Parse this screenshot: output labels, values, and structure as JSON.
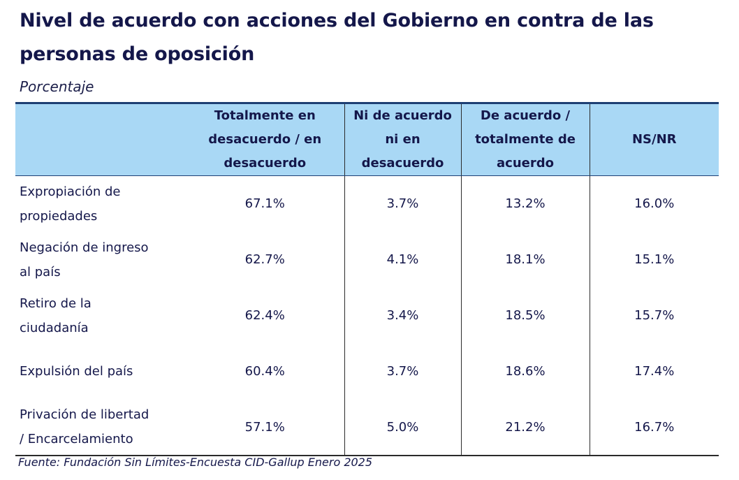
{
  "chart_data": {
    "type": "table",
    "title_line1": "Nivel de acuerdo con acciones del Gobierno en contra de las",
    "title_line2": "personas de oposición",
    "subtitle": "Porcentaje",
    "columns": [
      "",
      "Totalmente en desacuerdo / en desacuerdo",
      "Ni de acuerdo ni en desacuerdo",
      "De acuerdo / totalmente de acuerdo",
      "NS/NR"
    ],
    "header_lines": [
      [],
      [
        "Totalmente en",
        "desacuerdo / en",
        "desacuerdo"
      ],
      [
        "Ni de acuerdo",
        "ni en",
        "desacuerdo"
      ],
      [
        "De acuerdo /",
        "totalmente de",
        "acuerdo"
      ],
      [
        "NS/NR"
      ]
    ],
    "rows": [
      {
        "label": "Expropiación de propiedades",
        "label_lines": [
          "Expropiación de",
          "propiedades"
        ],
        "values": [
          "67.1%",
          "3.7%",
          "13.2%",
          "16.0%"
        ]
      },
      {
        "label": "Negación de ingreso al país",
        "label_lines": [
          "Negación de ingreso",
          "al país"
        ],
        "values": [
          "62.7%",
          "4.1%",
          "18.1%",
          "15.1%"
        ]
      },
      {
        "label": "Retiro de la ciudadanía",
        "label_lines": [
          "Retiro de la",
          "ciudadanía"
        ],
        "values": [
          "62.4%",
          "3.4%",
          "18.5%",
          "15.7%"
        ]
      },
      {
        "label": "Expulsión del país",
        "label_lines": [
          "Expulsión del país"
        ],
        "values": [
          "60.4%",
          "3.7%",
          "18.6%",
          "17.4%"
        ]
      },
      {
        "label": "Privación de libertad / Encarcelamiento",
        "label_lines": [
          "Privación de libertad",
          "/ Encarcelamiento"
        ],
        "values": [
          "57.1%",
          "5.0%",
          "21.2%",
          "16.7%"
        ]
      }
    ],
    "source": "Fuente: Fundación Sin Límites-Encuesta CID-Gallup Enero 2025",
    "colors": {
      "header_fill": "#a9d8f5",
      "title_text": "#14174a",
      "rule": "#1d3f73"
    }
  }
}
